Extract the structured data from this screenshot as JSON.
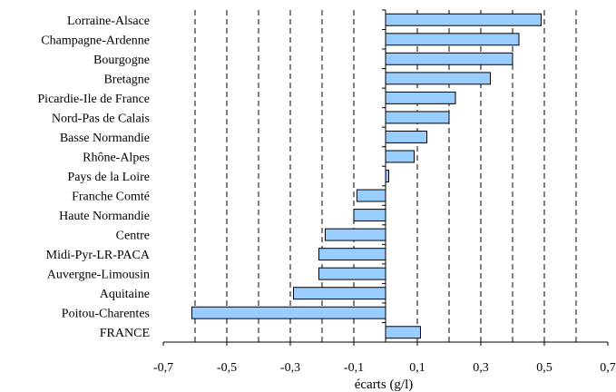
{
  "chart_data": {
    "type": "bar",
    "orientation": "horizontal",
    "title": "",
    "xlabel": "écarts (g/l)",
    "ylabel": "",
    "categories": [
      "Lorraine-Alsace",
      "Champagne-Ardenne",
      "Bourgogne",
      "Bretagne",
      "Picardie-Ile de France",
      "Nord-Pas de Calais",
      "Basse Normandie",
      "Rhône-Alpes",
      "Pays de la Loire",
      "Franche Comté",
      "Haute Normandie",
      "Centre",
      "Midi-Pyr-LR-PACA",
      "Auvergne-Limousin",
      "Aquitaine",
      "Poitou-Charentes",
      "FRANCE"
    ],
    "values": [
      0.49,
      0.42,
      0.4,
      0.33,
      0.22,
      0.2,
      0.13,
      0.09,
      0.01,
      -0.09,
      -0.1,
      -0.19,
      -0.21,
      -0.21,
      -0.29,
      -0.61,
      0.11
    ],
    "xlim": [
      -0.7,
      0.7
    ],
    "xticks": [
      "-0,7",
      "-0,5",
      "-0,3",
      "-0,1",
      "0,1",
      "0,3",
      "0,5",
      "0,7"
    ],
    "xtick_values": [
      -0.7,
      -0.5,
      -0.3,
      -0.1,
      0.1,
      0.3,
      0.5,
      0.7
    ],
    "gridlines_x": [
      -0.6,
      -0.5,
      -0.4,
      -0.3,
      -0.2,
      -0.1,
      0.1,
      0.2,
      0.3,
      0.4,
      0.5,
      0.6
    ],
    "grid": "dashed vertical",
    "colors": {
      "bar_fill": "#99ccff",
      "bar_stroke": "#000000",
      "grid": "#000000",
      "axis": "#000000"
    }
  }
}
